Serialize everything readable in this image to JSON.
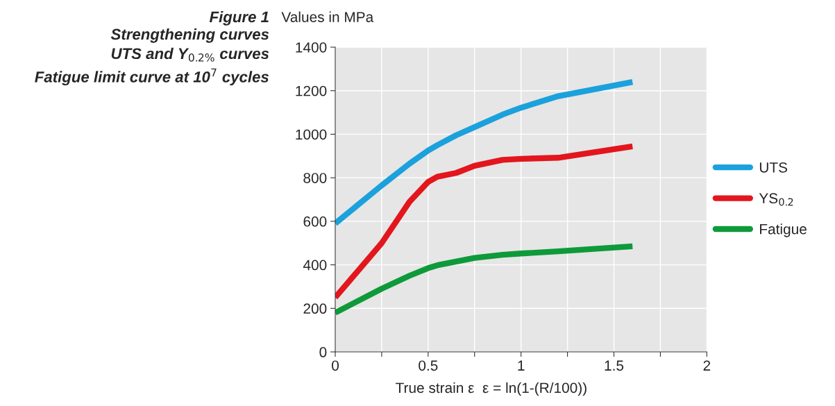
{
  "chart_data": {
    "type": "line",
    "title": "Figure 1",
    "subtitle": "Strengthening curves\nUTS and Y$_{0.2%}$ curves\nFatigue limit curve at 10$^{7}$ cycles",
    "ylabel": "Values in MPa",
    "xlabel": "True strain ε  ε = ln(1-(R/100))",
    "x": [
      0,
      0.25,
      0.4,
      0.5,
      0.55,
      0.65,
      0.75,
      0.9,
      1.0,
      1.2,
      1.6
    ],
    "series": [
      {
        "name": "UTS",
        "color": "#1ba1dc",
        "values": [
          590,
          765,
          865,
          925,
          950,
          995,
          1033,
          1090,
          1122,
          1175,
          1240
        ]
      },
      {
        "name": "YS$_{0.2}$",
        "color": "#e3161d",
        "values": [
          250,
          500,
          690,
          781,
          805,
          822,
          855,
          882,
          887,
          892,
          944
        ]
      },
      {
        "name": "Fatigue",
        "color": "#0e9a3a",
        "values": [
          180,
          290,
          350,
          385,
          398,
          415,
          432,
          446,
          452,
          462,
          485
        ]
      }
    ],
    "xlim": [
      0,
      2
    ],
    "ylim": [
      0,
      1400
    ],
    "xticks": [
      0,
      {
        "value": 0.25,
        "label": null
      },
      0.5,
      {
        "value": 0.75,
        "label": null
      },
      1,
      {
        "value": 1.25,
        "label": null
      },
      1.5,
      {
        "value": 1.75,
        "label": null
      },
      2
    ],
    "yticks": [
      0,
      200,
      400,
      600,
      800,
      1000,
      1200,
      1400
    ],
    "grid": true,
    "legend": "right",
    "marker": "none",
    "line_style": "solid"
  }
}
